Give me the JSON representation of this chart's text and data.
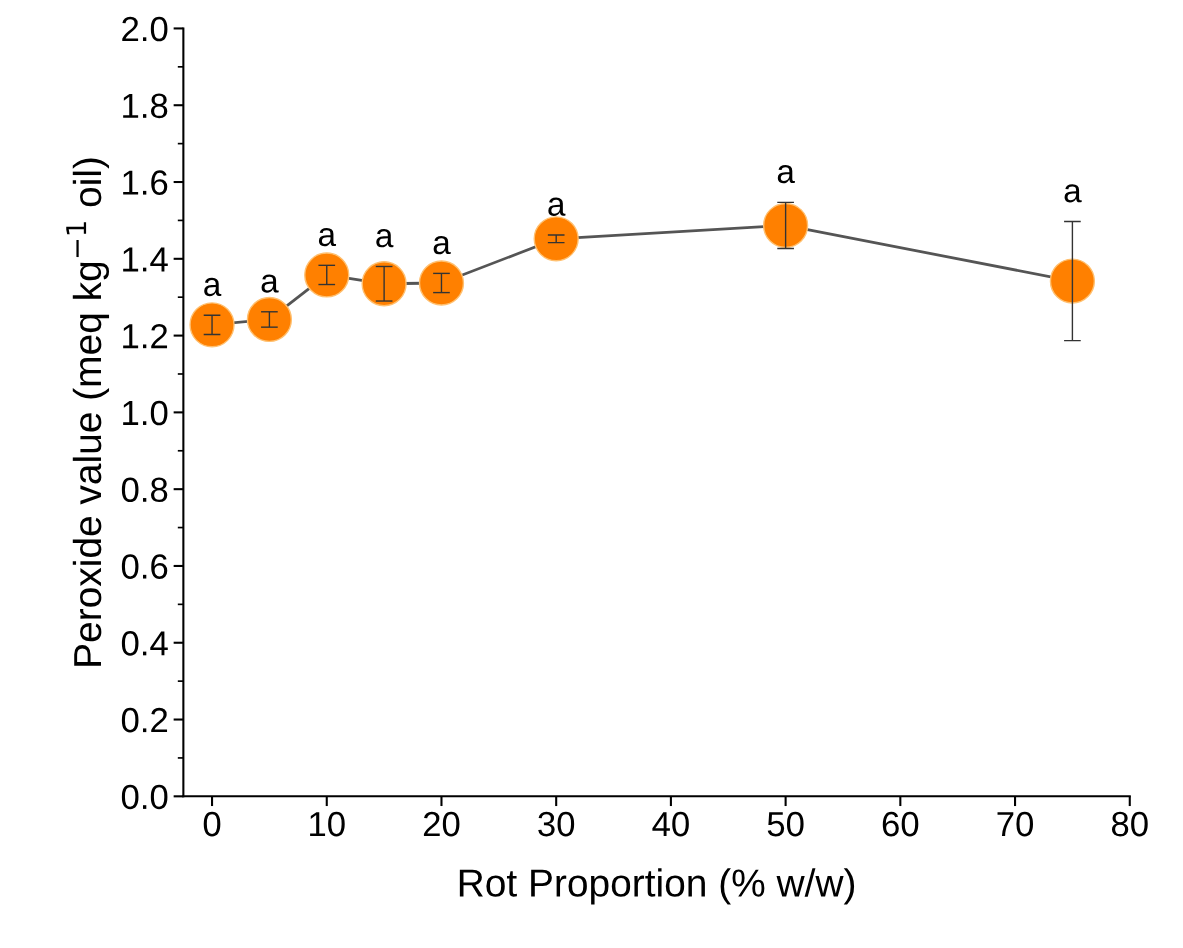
{
  "chart_data": {
    "type": "line",
    "xlabel": "Rot Proportion (% w/w)",
    "ylabel": "Peroxide value (meq kg$^{−1}$ oil)",
    "x": [
      0,
      5,
      10,
      15,
      20,
      30,
      50,
      75
    ],
    "series": [
      {
        "color": "#ff8000",
        "values": [
          1.228,
          1.242,
          1.358,
          1.335,
          1.337,
          1.452,
          1.487,
          1.342
        ],
        "errors": [
          0.025,
          0.02,
          0.025,
          0.045,
          0.025,
          0.01,
          0.06,
          0.155
        ]
      }
    ],
    "marker": "circle",
    "line_style": "solid",
    "grid": false,
    "xlim": [
      -2.5,
      80
    ],
    "xticks": [
      0,
      10,
      20,
      30,
      40,
      50,
      60,
      70,
      80
    ],
    "ylim": [
      0,
      2.0
    ],
    "yticks": [
      {
        "value": 0,
        "label": "0.0"
      },
      {
        "value": 0.2,
        "label": "0.2"
      },
      {
        "value": 0.4,
        "label": "0.4"
      },
      {
        "value": 0.6,
        "label": "0.6"
      },
      {
        "value": 0.8,
        "label": "0.8"
      },
      {
        "value": 1.0,
        "label": "1.0"
      },
      {
        "value": 1.2,
        "label": "1.2"
      },
      {
        "value": 1.4,
        "label": "1.4"
      },
      {
        "value": 1.6,
        "label": "1.6"
      },
      {
        "value": 1.8,
        "label": "1.8"
      },
      {
        "value": 2.0,
        "label": "2.0"
      }
    ],
    "annotations": [
      {
        "text": "a",
        "x": 0,
        "y": 1.253
      },
      {
        "text": "a",
        "x": 5,
        "y": 1.262
      },
      {
        "text": "a",
        "x": 10,
        "y": 1.383
      },
      {
        "text": "a",
        "x": 15,
        "y": 1.38
      },
      {
        "text": "a",
        "x": 20,
        "y": 1.362
      },
      {
        "text": "a",
        "x": 30,
        "y": 1.462
      },
      {
        "text": "a",
        "x": 50,
        "y": 1.547
      },
      {
        "text": "a",
        "x": 75,
        "y": 1.497
      }
    ]
  }
}
